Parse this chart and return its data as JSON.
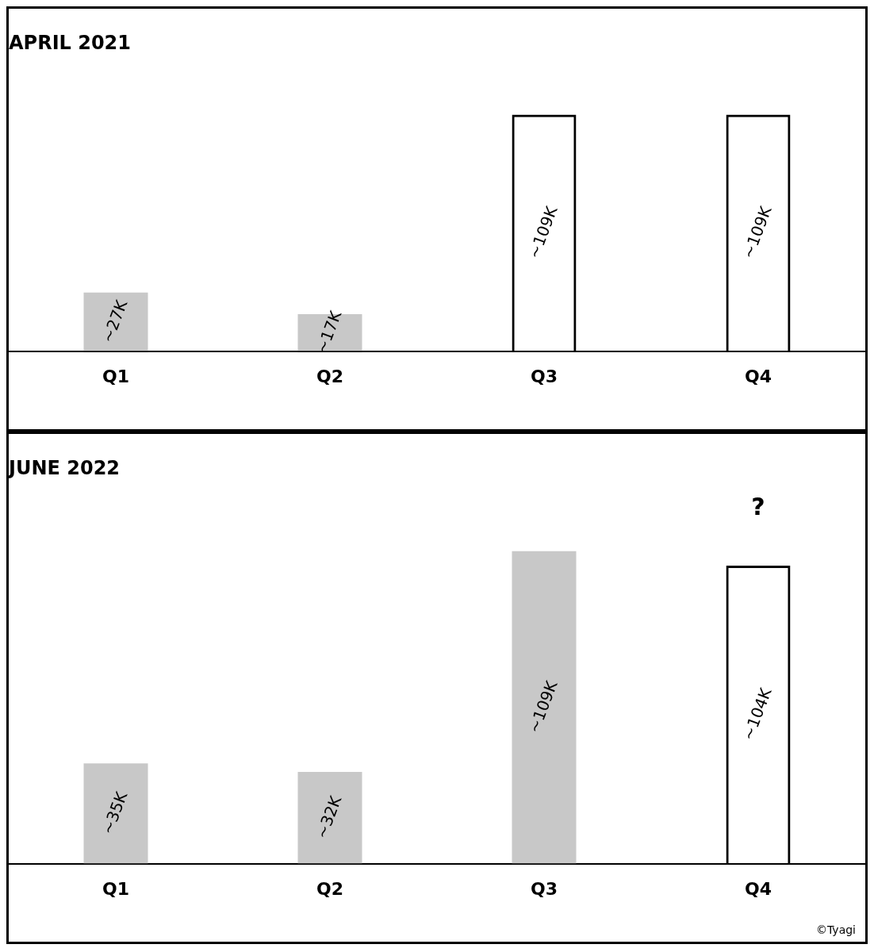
{
  "chart_data": [
    {
      "type": "bar",
      "title": "APRIL 2021",
      "categories": [
        "Q1",
        "Q2",
        "Q3",
        "Q4"
      ],
      "series": [
        {
          "color": "#c8c8c8",
          "values": [
            27000,
            17000,
            null,
            null
          ],
          "value_labels": [
            "~27K",
            "~17K",
            null,
            null
          ]
        },
        {
          "color": "#000000",
          "line_style": "dashed",
          "values": [
            null,
            null,
            109000,
            109000
          ],
          "value_labels": [
            null,
            null,
            "~109K",
            "~109K"
          ]
        }
      ]
    },
    {
      "type": "bar",
      "title": "JUNE 2022",
      "categories": [
        "Q1",
        "Q2",
        "Q3",
        "Q4"
      ],
      "annotations": [
        "?",
        "©Tyagi"
      ],
      "series": [
        {
          "color": "#c8c8c8",
          "values": [
            35000,
            32000,
            109000,
            null
          ],
          "value_labels": [
            "~35K",
            "~32K",
            "~109K",
            null
          ]
        },
        {
          "color": "#000000",
          "line_style": "dashed",
          "values": [
            null,
            null,
            null,
            104000
          ],
          "value_labels": [
            null,
            null,
            null,
            "~104K"
          ]
        }
      ]
    }
  ]
}
